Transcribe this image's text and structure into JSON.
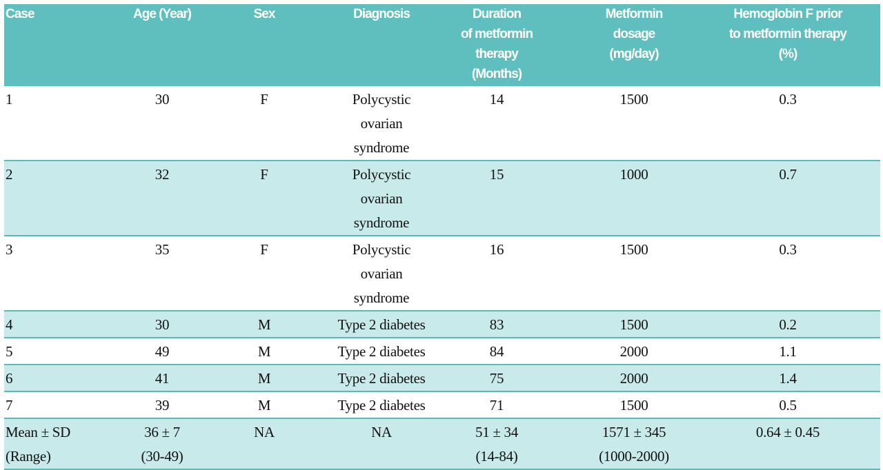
{
  "table": {
    "headers": [
      [
        "Case"
      ],
      [
        "Age  (Year)"
      ],
      [
        "Sex"
      ],
      [
        "Diagnosis"
      ],
      [
        "Duration",
        "of metformin",
        "therapy",
        "(Months)"
      ],
      [
        "Metformin",
        "dosage",
        "(mg/day)"
      ],
      [
        "Hemoglobin F prior",
        "to metformin therapy",
        "(%)"
      ]
    ],
    "rows": [
      {
        "case": "1",
        "age": [
          "30"
        ],
        "sex": "F",
        "diagnosis": [
          "Polycystic",
          "ovarian",
          "syndrome"
        ],
        "duration": [
          "14"
        ],
        "dosage": [
          "1500"
        ],
        "hbf": "0.3"
      },
      {
        "case": "2",
        "age": [
          "32"
        ],
        "sex": "F",
        "diagnosis": [
          "Polycystic",
          "ovarian",
          "syndrome"
        ],
        "duration": [
          "15"
        ],
        "dosage": [
          "1000"
        ],
        "hbf": "0.7"
      },
      {
        "case": "3",
        "age": [
          "35"
        ],
        "sex": "F",
        "diagnosis": [
          "Polycystic",
          "ovarian",
          "syndrome"
        ],
        "duration": [
          "16"
        ],
        "dosage": [
          "1500"
        ],
        "hbf": "0.3"
      },
      {
        "case": "4",
        "age": [
          "30"
        ],
        "sex": "M",
        "diagnosis": [
          "Type 2 diabetes"
        ],
        "duration": [
          "83"
        ],
        "dosage": [
          "1500"
        ],
        "hbf": "0.2"
      },
      {
        "case": "5",
        "age": [
          "49"
        ],
        "sex": "M",
        "diagnosis": [
          "Type 2 diabetes"
        ],
        "duration": [
          "84"
        ],
        "dosage": [
          "2000"
        ],
        "hbf": "1.1"
      },
      {
        "case": "6",
        "age": [
          "41"
        ],
        "sex": "M",
        "diagnosis": [
          "Type 2 diabetes"
        ],
        "duration": [
          "75"
        ],
        "dosage": [
          "2000"
        ],
        "hbf": "1.4"
      },
      {
        "case": "7",
        "age": [
          "39"
        ],
        "sex": "M",
        "diagnosis": [
          "Type 2 diabetes"
        ],
        "duration": [
          "71"
        ],
        "dosage": [
          "1500"
        ],
        "hbf": "0.5"
      },
      {
        "case": [
          "Mean ± SD",
          "(Range)"
        ],
        "age": [
          "36 ± 7",
          "(30-49)"
        ],
        "sex": "NA",
        "diagnosis": [
          "NA"
        ],
        "duration": [
          "51 ± 34",
          "(14-84)"
        ],
        "dosage": [
          "1571 ± 345",
          "(1000-2000)"
        ],
        "hbf": "0.64 ± 0.45"
      }
    ]
  },
  "colors": {
    "header_bg": "#5fbfbf",
    "row_tint": "#c8eaea",
    "rule": "#5fb8b8",
    "header_text": "#ffffff"
  }
}
